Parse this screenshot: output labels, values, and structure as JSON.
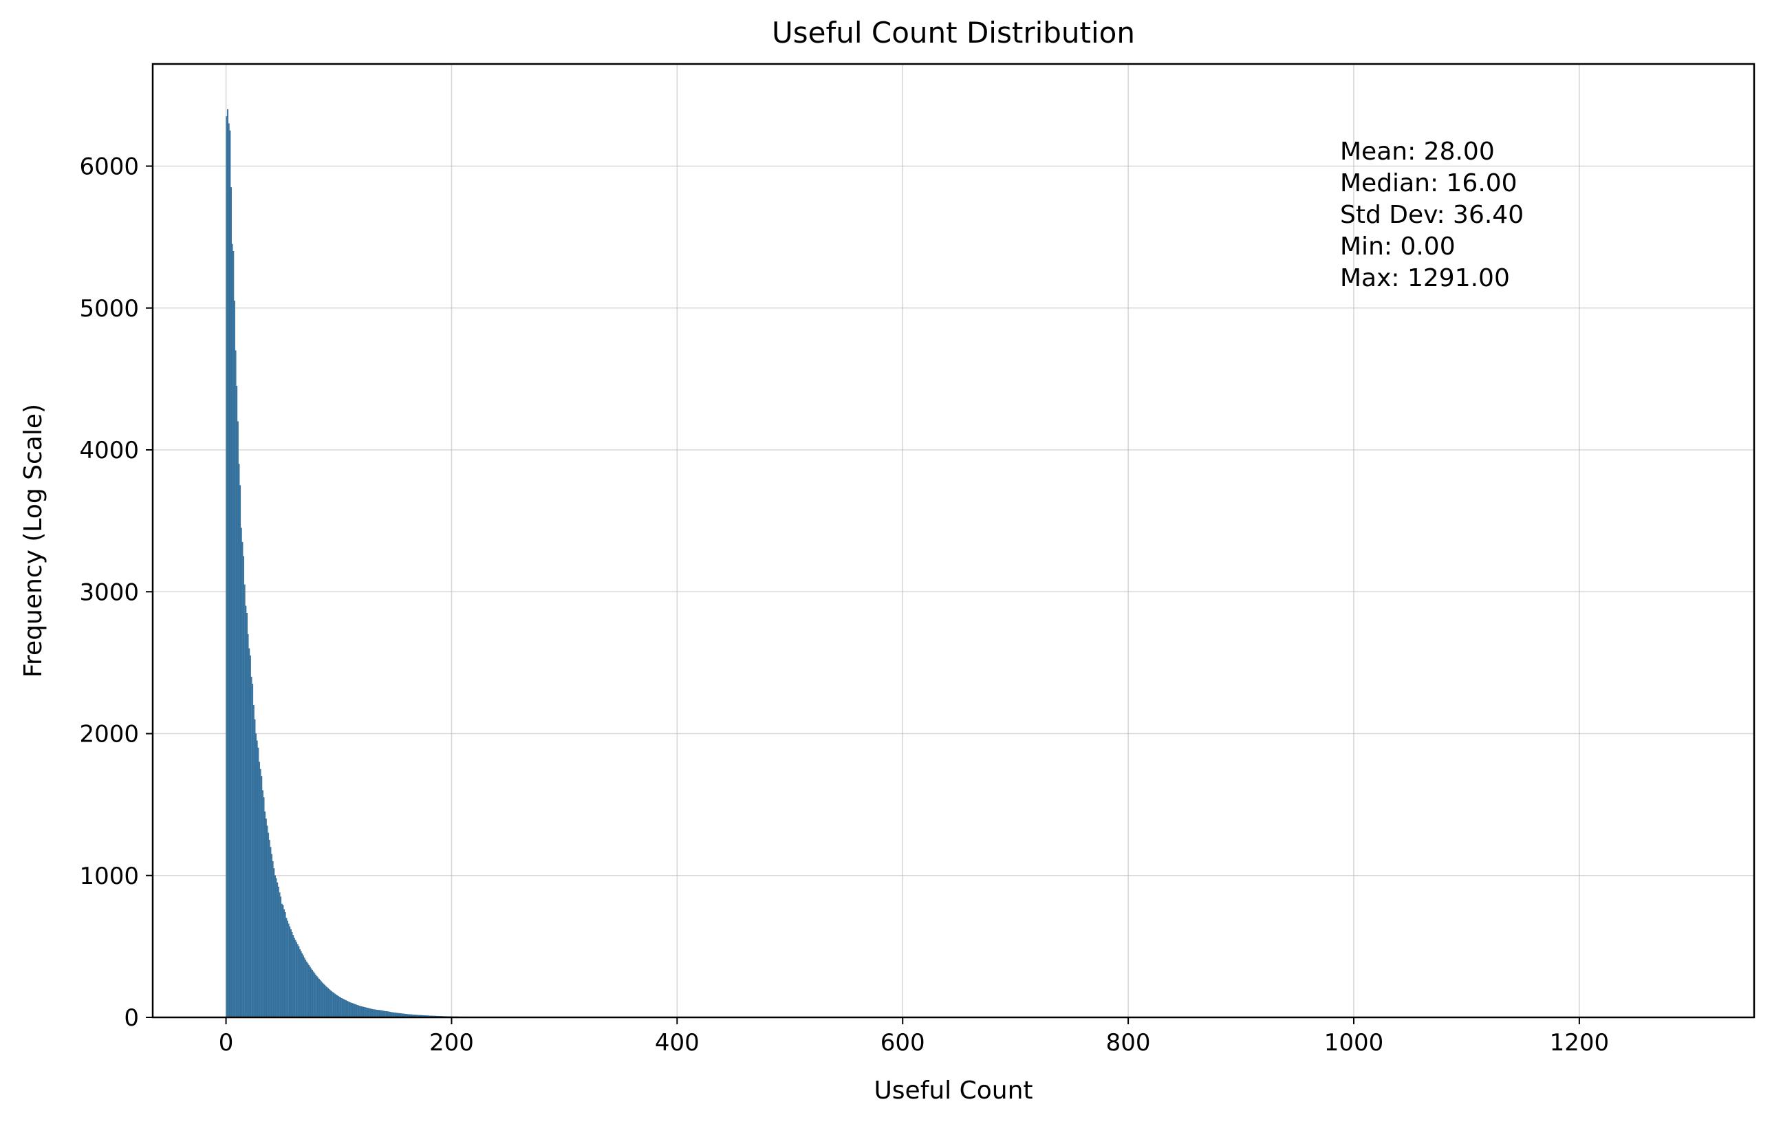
{
  "chart_data": {
    "type": "bar",
    "title": "Useful Count Distribution",
    "xlabel": "Useful Count",
    "ylabel": "Frequency (Log Scale)",
    "xlim": [
      -65,
      1355
    ],
    "ylim": [
      0,
      6720
    ],
    "xticks": [
      0,
      200,
      400,
      600,
      800,
      1000,
      1200
    ],
    "yticks": [
      0,
      1000,
      2000,
      3000,
      4000,
      5000,
      6000
    ],
    "grid": true,
    "bar_color": "#3d7ba8",
    "bin_width": 1,
    "stats": {
      "lines": [
        "Mean: 28.00",
        "Median: 16.00",
        "Std Dev: 36.40",
        "Min: 0.00",
        "Max: 1291.00"
      ]
    },
    "bins": [
      [
        0,
        6350
      ],
      [
        1,
        6400
      ],
      [
        2,
        6300
      ],
      [
        3,
        6250
      ],
      [
        4,
        5850
      ],
      [
        5,
        5450
      ],
      [
        6,
        5400
      ],
      [
        7,
        5050
      ],
      [
        8,
        4700
      ],
      [
        9,
        4450
      ],
      [
        10,
        4200
      ],
      [
        11,
        3900
      ],
      [
        12,
        3750
      ],
      [
        13,
        3450
      ],
      [
        14,
        3350
      ],
      [
        15,
        3250
      ],
      [
        16,
        3050
      ],
      [
        17,
        2900
      ],
      [
        18,
        2850
      ],
      [
        19,
        2700
      ],
      [
        20,
        2600
      ],
      [
        21,
        2550
      ],
      [
        22,
        2400
      ],
      [
        23,
        2350
      ],
      [
        24,
        2200
      ],
      [
        25,
        2100
      ],
      [
        26,
        2000
      ],
      [
        27,
        1950
      ],
      [
        28,
        1900
      ],
      [
        29,
        1800
      ],
      [
        30,
        1750
      ],
      [
        31,
        1700
      ],
      [
        32,
        1600
      ],
      [
        33,
        1550
      ],
      [
        34,
        1450
      ],
      [
        35,
        1400
      ],
      [
        36,
        1350
      ],
      [
        37,
        1300
      ],
      [
        38,
        1250
      ],
      [
        39,
        1200
      ],
      [
        40,
        1150
      ],
      [
        41,
        1100
      ],
      [
        42,
        1050
      ],
      [
        43,
        1000
      ],
      [
        44,
        980
      ],
      [
        45,
        950
      ],
      [
        46,
        920
      ],
      [
        47,
        880
      ],
      [
        48,
        850
      ],
      [
        49,
        800
      ],
      [
        50,
        790
      ],
      [
        51,
        760
      ],
      [
        52,
        740
      ],
      [
        53,
        700
      ],
      [
        54,
        680
      ],
      [
        55,
        660
      ],
      [
        56,
        640
      ],
      [
        57,
        620
      ],
      [
        58,
        600
      ],
      [
        59,
        580
      ],
      [
        60,
        560
      ],
      [
        61,
        545
      ],
      [
        62,
        530
      ],
      [
        63,
        515
      ],
      [
        64,
        500
      ],
      [
        65,
        480
      ],
      [
        66,
        465
      ],
      [
        67,
        450
      ],
      [
        68,
        435
      ],
      [
        69,
        420
      ],
      [
        70,
        405
      ],
      [
        71,
        392
      ],
      [
        72,
        380
      ],
      [
        73,
        368
      ],
      [
        74,
        356
      ],
      [
        75,
        344
      ],
      [
        76,
        333
      ],
      [
        77,
        322
      ],
      [
        78,
        311
      ],
      [
        79,
        300
      ],
      [
        80,
        290
      ],
      [
        81,
        280
      ],
      [
        82,
        271
      ],
      [
        83,
        262
      ],
      [
        84,
        253
      ],
      [
        85,
        244
      ],
      [
        86,
        236
      ],
      [
        87,
        228
      ],
      [
        88,
        220
      ],
      [
        89,
        212
      ],
      [
        90,
        205
      ],
      [
        91,
        198
      ],
      [
        92,
        191
      ],
      [
        93,
        184
      ],
      [
        94,
        178
      ],
      [
        95,
        172
      ],
      [
        96,
        166
      ],
      [
        97,
        160
      ],
      [
        98,
        155
      ],
      [
        99,
        150
      ],
      [
        100,
        145
      ],
      [
        101,
        140
      ],
      [
        102,
        135
      ],
      [
        103,
        131
      ],
      [
        104,
        127
      ],
      [
        105,
        123
      ],
      [
        106,
        119
      ],
      [
        107,
        115
      ],
      [
        108,
        111
      ],
      [
        109,
        107
      ],
      [
        110,
        104
      ],
      [
        111,
        101
      ],
      [
        112,
        98
      ],
      [
        113,
        95
      ],
      [
        114,
        92
      ],
      [
        115,
        89
      ],
      [
        116,
        86
      ],
      [
        117,
        83
      ],
      [
        118,
        80
      ],
      [
        119,
        78
      ],
      [
        120,
        76
      ],
      [
        121,
        74
      ],
      [
        122,
        72
      ],
      [
        123,
        70
      ],
      [
        124,
        68
      ],
      [
        125,
        66
      ],
      [
        126,
        64
      ],
      [
        127,
        62
      ],
      [
        128,
        60
      ],
      [
        129,
        58
      ],
      [
        130,
        56
      ],
      [
        131,
        55
      ],
      [
        132,
        54
      ],
      [
        133,
        53
      ],
      [
        134,
        52
      ],
      [
        135,
        51
      ],
      [
        136,
        50
      ],
      [
        137,
        49
      ],
      [
        138,
        48
      ],
      [
        139,
        46
      ],
      [
        140,
        44
      ],
      [
        141,
        43
      ],
      [
        142,
        42
      ],
      [
        143,
        41
      ],
      [
        144,
        40
      ],
      [
        145,
        38
      ],
      [
        146,
        36
      ],
      [
        147,
        35
      ],
      [
        148,
        34
      ],
      [
        149,
        33
      ],
      [
        150,
        32
      ],
      [
        151,
        31
      ],
      [
        152,
        30
      ],
      [
        153,
        29
      ],
      [
        154,
        28
      ],
      [
        155,
        27
      ],
      [
        156,
        26
      ],
      [
        157,
        25
      ],
      [
        158,
        24
      ],
      [
        159,
        23
      ],
      [
        160,
        22
      ],
      [
        161,
        21
      ],
      [
        162,
        21
      ],
      [
        163,
        20
      ],
      [
        164,
        20
      ],
      [
        165,
        19
      ],
      [
        166,
        18
      ],
      [
        167,
        18
      ],
      [
        168,
        17
      ],
      [
        169,
        17
      ],
      [
        170,
        16
      ],
      [
        171,
        16
      ],
      [
        172,
        15
      ],
      [
        173,
        15
      ],
      [
        174,
        14
      ],
      [
        175,
        14
      ],
      [
        176,
        13
      ],
      [
        177,
        13
      ],
      [
        178,
        12
      ],
      [
        179,
        12
      ],
      [
        180,
        11
      ],
      [
        181,
        11
      ],
      [
        182,
        11
      ],
      [
        183,
        10
      ],
      [
        184,
        10
      ],
      [
        185,
        10
      ],
      [
        186,
        9
      ],
      [
        187,
        9
      ],
      [
        188,
        9
      ],
      [
        189,
        8
      ],
      [
        190,
        8
      ],
      [
        191,
        8
      ],
      [
        192,
        7
      ],
      [
        193,
        7
      ],
      [
        194,
        7
      ],
      [
        195,
        7
      ],
      [
        196,
        6
      ],
      [
        197,
        6
      ],
      [
        198,
        6
      ],
      [
        199,
        6
      ],
      [
        200,
        6
      ],
      [
        201,
        5
      ],
      [
        202,
        5
      ],
      [
        203,
        5
      ],
      [
        204,
        5
      ],
      [
        205,
        5
      ],
      [
        206,
        4
      ],
      [
        207,
        4
      ],
      [
        208,
        4
      ],
      [
        209,
        4
      ],
      [
        210,
        4
      ],
      [
        211,
        4
      ],
      [
        212,
        3
      ],
      [
        213,
        3
      ],
      [
        214,
        3
      ],
      [
        215,
        3
      ],
      [
        216,
        3
      ],
      [
        217,
        3
      ],
      [
        218,
        3
      ],
      [
        219,
        2
      ],
      [
        220,
        2
      ],
      [
        221,
        2
      ],
      [
        222,
        2
      ],
      [
        223,
        2
      ],
      [
        224,
        2
      ],
      [
        225,
        2
      ],
      [
        226,
        2
      ],
      [
        227,
        2
      ],
      [
        228,
        2
      ],
      [
        229,
        2
      ],
      [
        230,
        1
      ],
      [
        231,
        1
      ],
      [
        232,
        1
      ],
      [
        233,
        1
      ],
      [
        234,
        1
      ],
      [
        235,
        1
      ],
      [
        236,
        1
      ],
      [
        237,
        1
      ],
      [
        238,
        1
      ],
      [
        239,
        1
      ]
    ]
  }
}
